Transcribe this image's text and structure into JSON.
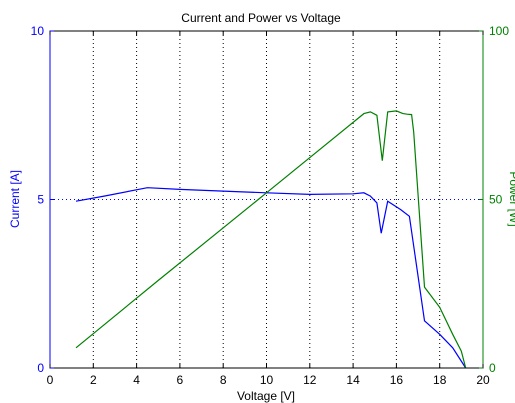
{
  "chart_data": {
    "type": "line",
    "title": "Current and Power vs Voltage",
    "xlabel": "Voltage [V]",
    "ylabel": "Current [A]",
    "y2label": "Power [W]",
    "xlim": [
      0,
      20
    ],
    "ylim": [
      0,
      10
    ],
    "y2lim": [
      0,
      100
    ],
    "x_ticks": [
      "0",
      "2",
      "4",
      "6",
      "8",
      "10",
      "12",
      "14",
      "16",
      "18",
      "20"
    ],
    "y_ticks": [
      "0",
      "5",
      "10"
    ],
    "y2_ticks": [
      "0",
      "50",
      "100"
    ],
    "grid": "vertical dotted at x ticks, horizontal dotted at y=5",
    "colors": {
      "current": "#0000ff",
      "power": "#008000",
      "axes": "#000000"
    },
    "series": [
      {
        "axis": "left",
        "x": [
          1.2,
          2.5,
          4.5,
          6,
          8,
          10,
          12,
          14,
          14.5,
          14.8,
          15.1,
          15.3,
          15.6,
          16.2,
          16.6,
          17.3,
          18.0,
          18.6,
          19.2
        ],
        "y": [
          4.95,
          5.1,
          5.35,
          5.3,
          5.25,
          5.2,
          5.15,
          5.17,
          5.2,
          5.1,
          4.9,
          4.0,
          4.95,
          4.7,
          4.5,
          1.4,
          1.0,
          0.6,
          0.0
        ]
      },
      {
        "axis": "right",
        "x": [
          1.2,
          5.0,
          10.0,
          14.5,
          14.8,
          15.1,
          15.35,
          15.6,
          16.0,
          16.3,
          16.5,
          16.7,
          16.8,
          17.3,
          18.0,
          18.6,
          19.0,
          19.2
        ],
        "y": [
          6,
          26,
          52,
          75.5,
          76,
          75,
          61.5,
          76,
          76.3,
          75.5,
          75.3,
          75.2,
          70,
          24,
          18,
          10,
          5,
          0
        ]
      }
    ]
  }
}
